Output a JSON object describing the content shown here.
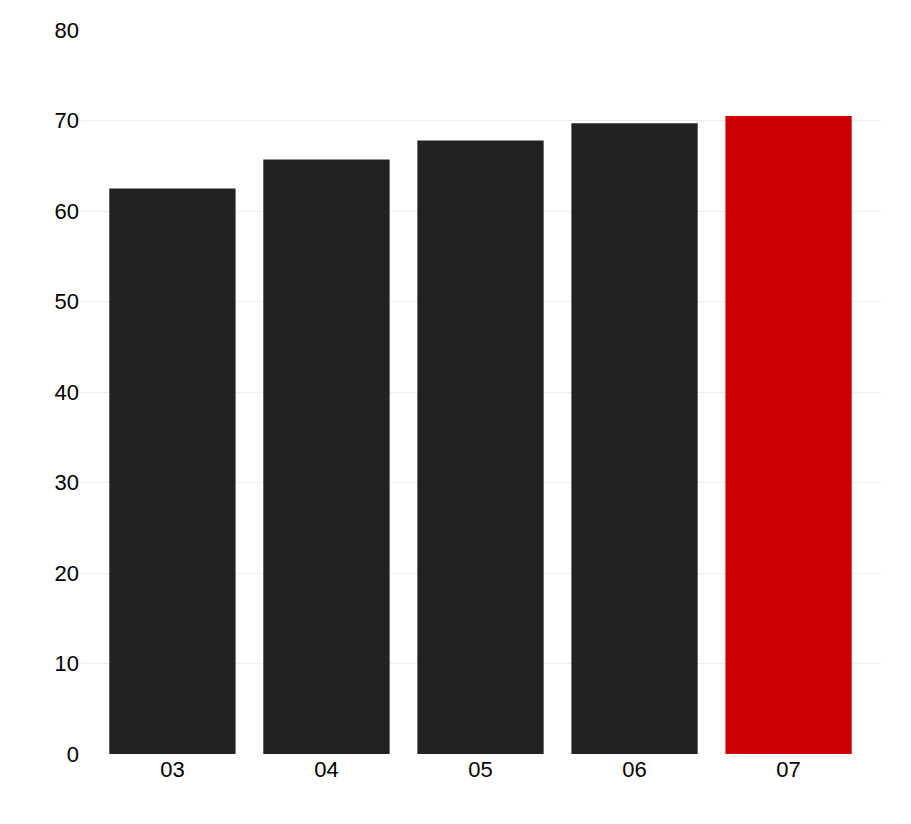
{
  "chart_data": {
    "type": "bar",
    "categories": [
      "03",
      "04",
      "05",
      "06",
      "07"
    ],
    "values": [
      62.5,
      65.7,
      67.8,
      69.7,
      70.5
    ],
    "colors": [
      "#222222",
      "#222222",
      "#222222",
      "#222222",
      "#cc0000"
    ],
    "ylim": [
      0,
      80
    ],
    "yticks": [
      0,
      10,
      20,
      30,
      40,
      50,
      60,
      70,
      80
    ],
    "grid": true
  }
}
